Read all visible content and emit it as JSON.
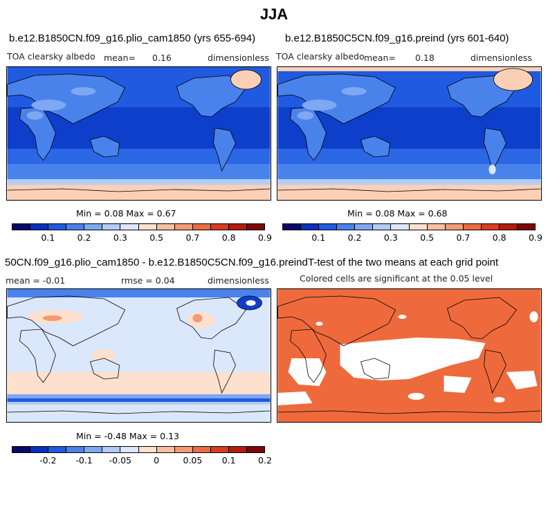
{
  "main_title": "JJA",
  "panel1": {
    "title": "b.e12.B1850CN.f09_g16.plio_cam1850 (yrs 655-694)",
    "variable": "TOA clearsky albedo",
    "mean_label": "mean=",
    "mean_value": "0.16",
    "units": "dimensionless",
    "minmax": "Min =   0.08 Max =   0.67"
  },
  "panel2": {
    "title": "b.e12.B1850C5CN.f09_g16.preind (yrs 601-640)",
    "variable": "TOA clearsky albedo",
    "mean_label": "mean=",
    "mean_value": "0.18",
    "units": "dimensionless",
    "minmax": "Min =   0.08 Max =   0.68"
  },
  "panel3": {
    "title": "50CN.f09_g16.plio_cam1850 - b.e12.B1850C5CN.f09_g16.preind",
    "mean_text": "mean =  -0.01",
    "rmse_text": "rmse =   0.04",
    "units": "dimensionless",
    "minmax": "Min =  -0.48 Max =   0.13"
  },
  "panel4": {
    "title": "T-test of the two means at each grid point",
    "subtitle": "Colored cells are significant at the 0.05 level"
  },
  "colorbar_abs": {
    "colors": [
      "#08086b",
      "#0a2fbf",
      "#1f5ae0",
      "#4a82ec",
      "#7fa8f2",
      "#b3ccf7",
      "#dbe7fb",
      "#fde0cd",
      "#fbbf9f",
      "#f59a75",
      "#ec6a44",
      "#d93c1f",
      "#b31c0e",
      "#7d0707"
    ],
    "ticks": [
      "0.1",
      "0.2",
      "0.3",
      "0.5",
      "0.7",
      "0.8",
      "0.9"
    ]
  },
  "colorbar_diff": {
    "colors": [
      "#08086b",
      "#0a2fbf",
      "#1f5ae0",
      "#4a82ec",
      "#7fa8f2",
      "#b3ccf7",
      "#dbe7fb",
      "#fde0cd",
      "#fbbf9f",
      "#f59a75",
      "#ec6a44",
      "#d93c1f",
      "#b31c0e",
      "#7d0707"
    ],
    "ticks": [
      "-0.2",
      "-0.1",
      "-0.05",
      "0",
      "0.05",
      "0.1",
      "0.2"
    ]
  },
  "colors": {
    "ocean_low": "#0d3fcb",
    "ocean_mid": "#1f5ae0",
    "land_mid": "#4a82ec",
    "land_light": "#7fa8f2",
    "ice": "#fbd0b6",
    "diff_bg": "#dbe7fb",
    "diff_pos": "#fde0cd",
    "ttest": "#ee6a3c"
  }
}
